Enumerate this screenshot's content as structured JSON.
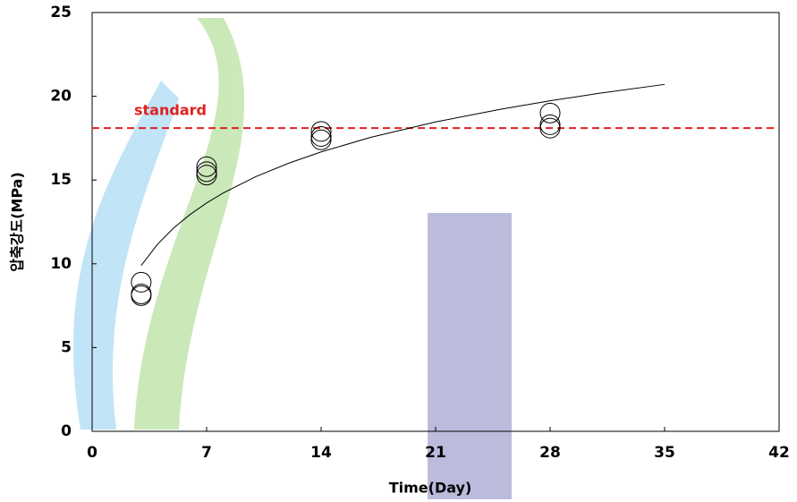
{
  "chart_data": {
    "type": "scatter",
    "x_label": "Time(Day)",
    "y_label": "압축강도(MPa)",
    "xlim": [
      0,
      42
    ],
    "xticks": [
      0,
      7,
      14,
      21,
      28,
      35,
      42
    ],
    "ylim": [
      0,
      25
    ],
    "yticks": [
      0,
      5,
      10,
      15,
      20,
      25
    ],
    "series": [
      {
        "type": "scatter",
        "color": "#000000",
        "x": [
          3,
          3,
          3,
          7,
          7,
          7,
          14,
          14,
          14,
          28,
          28,
          28
        ],
        "values": [
          8.9,
          8.2,
          8.1,
          15.8,
          15.5,
          15.3,
          17.9,
          17.6,
          17.4,
          19.0,
          18.3,
          18.1
        ]
      },
      {
        "type": "line",
        "color": "#000000",
        "x": [
          3,
          4,
          5,
          6,
          7,
          8,
          10,
          12,
          14,
          17,
          21,
          25,
          28,
          31,
          35
        ],
        "values": [
          9.9,
          11.17,
          12.15,
          12.95,
          13.63,
          14.22,
          15.2,
          16.0,
          16.68,
          17.54,
          18.47,
          19.23,
          19.73,
          20.18,
          20.71
        ]
      }
    ],
    "reference_line": {
      "label": "standard",
      "value": 18.1,
      "color": "#e02020"
    }
  }
}
